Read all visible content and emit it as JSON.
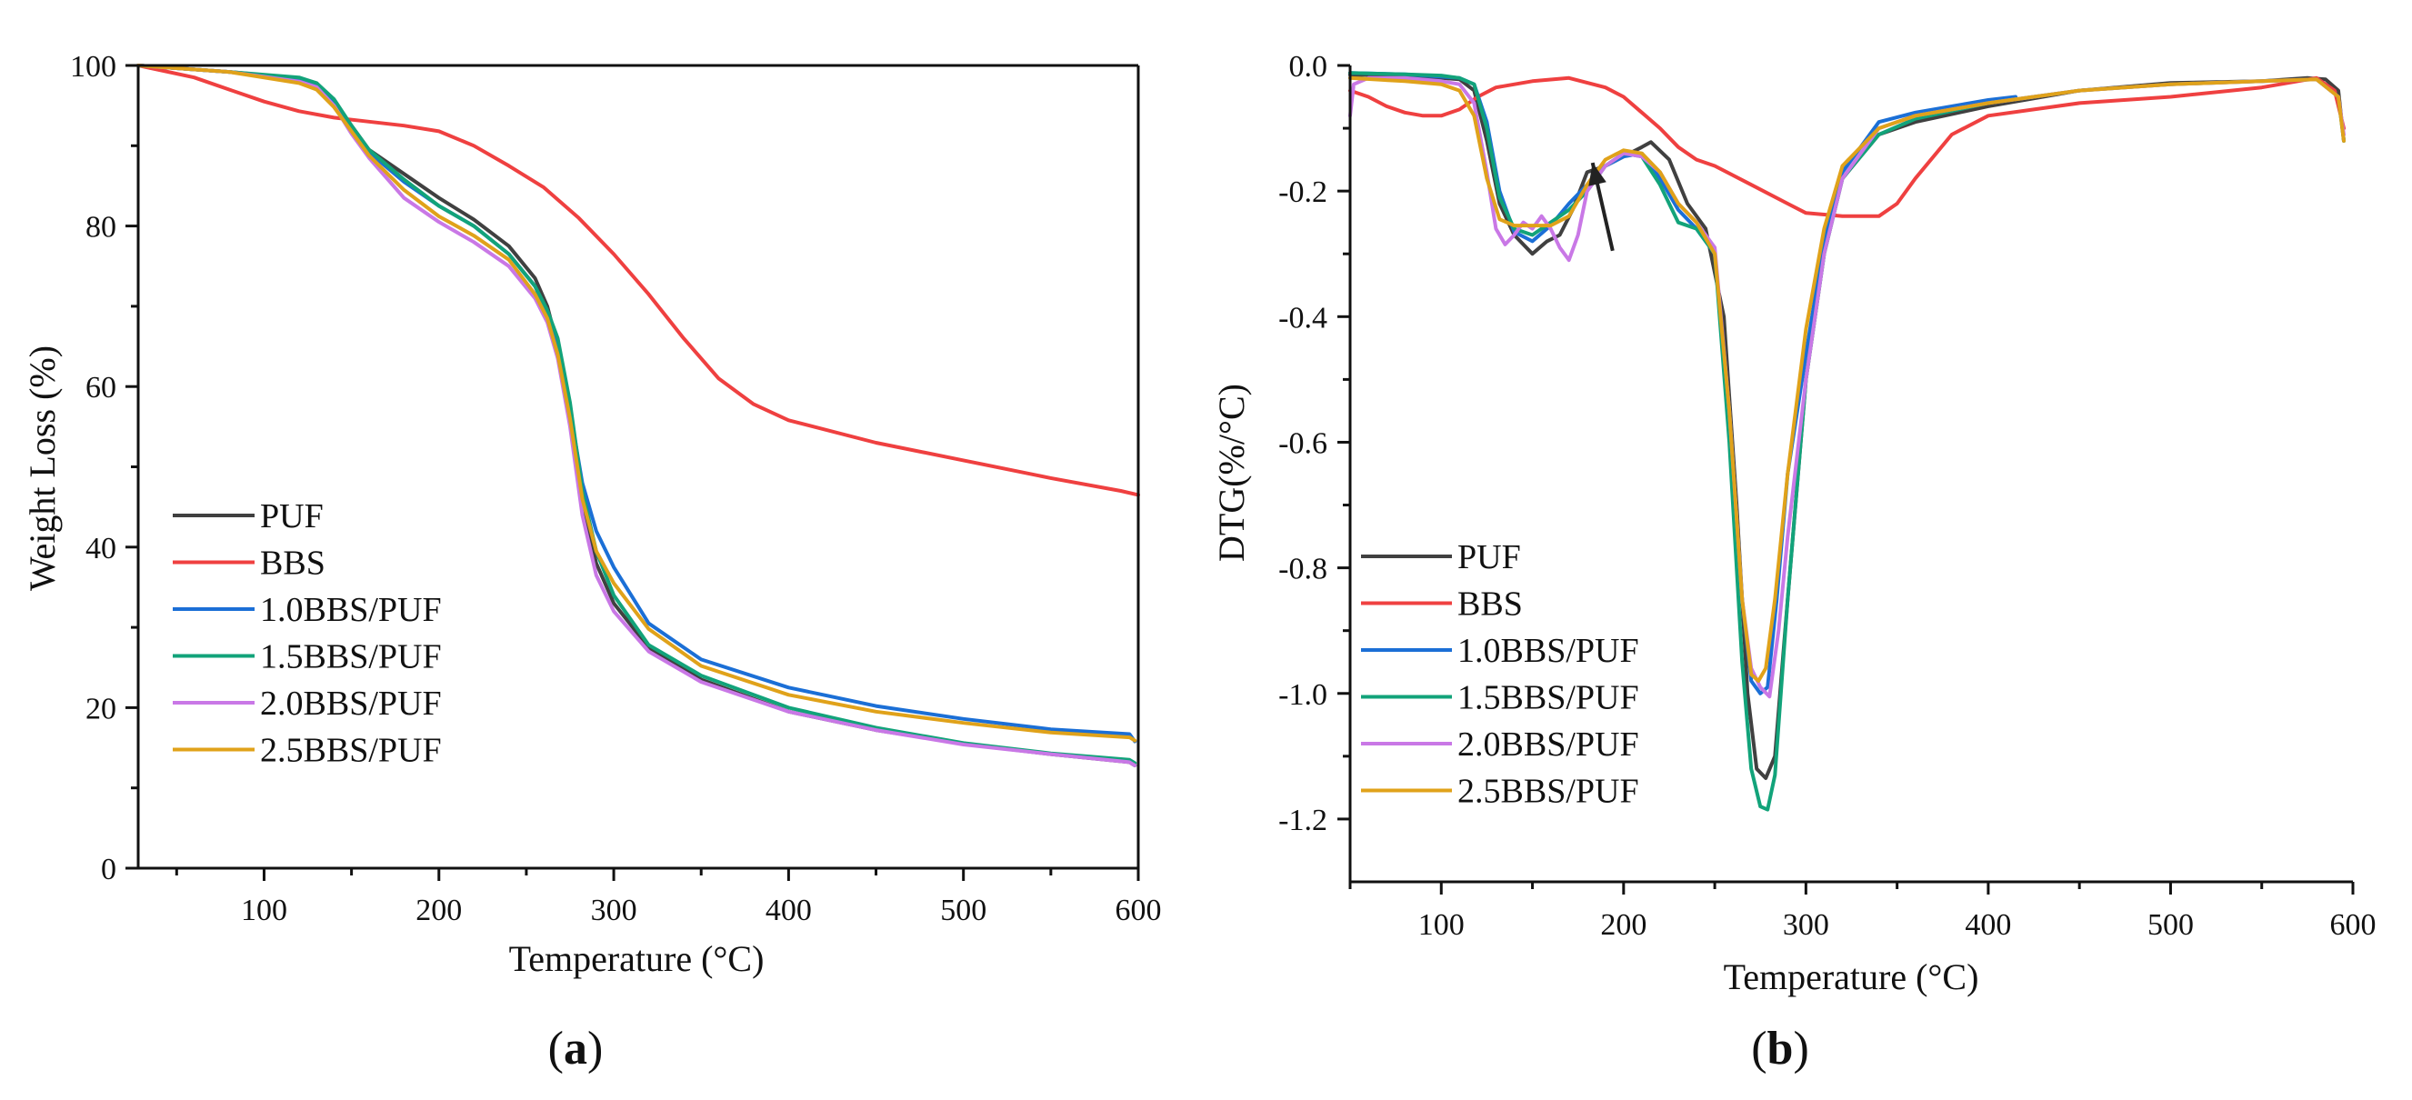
{
  "colors": {
    "PUF": "#404040",
    "BBS": "#ef4040",
    "1.0BBS/PUF": "#1b6fd6",
    "1.5BBS/PUF": "#12a37a",
    "2.0BBS/PUF": "#c978e6",
    "2.5BBS/PUF": "#e0a21a",
    "arrow": "#222222"
  },
  "chart_data": [
    {
      "id": "a",
      "panel_label": "a",
      "type": "line",
      "title": "",
      "xlabel": "Temperature (°C)",
      "ylabel": "Weight Loss (%)",
      "xlim": [
        28,
        600
      ],
      "ylim": [
        0,
        100
      ],
      "xticks": [
        100,
        200,
        300,
        400,
        500,
        600
      ],
      "yticks": [
        0,
        20,
        40,
        60,
        80,
        100
      ],
      "legend_position": "left",
      "series": [
        {
          "name": "PUF",
          "x": [
            28,
            80,
            120,
            130,
            140,
            150,
            160,
            180,
            200,
            220,
            240,
            255,
            262,
            268,
            275,
            282,
            290,
            300,
            320,
            350,
            400,
            450,
            500,
            550,
            595,
            598
          ],
          "y": [
            100,
            99.2,
            98.4,
            97.8,
            95.5,
            92.5,
            89.5,
            86.5,
            83.5,
            80.8,
            77.5,
            73.5,
            70,
            65,
            56,
            46,
            38,
            33,
            27.5,
            23.5,
            19.5,
            17.2,
            15.5,
            14.2,
            13.2,
            12.8
          ]
        },
        {
          "name": "BBS",
          "x": [
            28,
            60,
            80,
            100,
            120,
            140,
            160,
            180,
            200,
            220,
            240,
            260,
            280,
            300,
            320,
            340,
            360,
            380,
            400,
            450,
            500,
            550,
            590,
            600
          ],
          "y": [
            100,
            98.5,
            97,
            95.5,
            94.3,
            93.5,
            93,
            92.5,
            91.8,
            90,
            87.5,
            84.8,
            81,
            76.5,
            71.5,
            66,
            61,
            57.8,
            55.8,
            53,
            50.8,
            48.6,
            47,
            46.5
          ]
        },
        {
          "name": "1.0BBS/PUF",
          "x": [
            28,
            80,
            120,
            130,
            140,
            150,
            160,
            180,
            200,
            220,
            240,
            255,
            262,
            268,
            275,
            282,
            290,
            300,
            320,
            350,
            400,
            450,
            500,
            550,
            595,
            598
          ],
          "y": [
            100,
            99.2,
            98.2,
            97.5,
            95.5,
            92.2,
            89.2,
            85.5,
            82.5,
            80,
            76.5,
            72.5,
            69,
            65,
            57,
            48,
            42,
            37.5,
            30.5,
            26,
            22.5,
            20.2,
            18.6,
            17.3,
            16.7,
            15.8
          ]
        },
        {
          "name": "1.5BBS/PUF",
          "x": [
            28,
            80,
            120,
            130,
            140,
            150,
            160,
            180,
            200,
            220,
            240,
            255,
            262,
            268,
            275,
            282,
            290,
            300,
            320,
            350,
            400,
            450,
            500,
            550,
            595,
            598
          ],
          "y": [
            100,
            99.2,
            98.5,
            97.8,
            95.8,
            92.5,
            89.5,
            85.8,
            82.5,
            80,
            76.5,
            72.5,
            69.5,
            66,
            58,
            47,
            39.5,
            34,
            27.8,
            24,
            20,
            17.5,
            15.6,
            14.3,
            13.5,
            13.1
          ]
        },
        {
          "name": "2.0BBS/PUF",
          "x": [
            28,
            80,
            120,
            130,
            140,
            150,
            160,
            180,
            200,
            220,
            240,
            255,
            262,
            268,
            275,
            282,
            290,
            300,
            320,
            350,
            400,
            450,
            500,
            550,
            595,
            598
          ],
          "y": [
            100,
            99.2,
            98,
            97.3,
            95,
            91.5,
            88.5,
            83.5,
            80.5,
            78,
            75,
            71,
            68,
            63.5,
            55,
            44,
            36.5,
            32,
            27,
            23.2,
            19.5,
            17.2,
            15.4,
            14.2,
            13.2,
            12.8
          ]
        },
        {
          "name": "2.5BBS/PUF",
          "x": [
            28,
            80,
            120,
            130,
            140,
            150,
            160,
            180,
            200,
            220,
            240,
            255,
            262,
            268,
            275,
            282,
            290,
            300,
            320,
            350,
            400,
            450,
            500,
            550,
            595,
            598
          ],
          "y": [
            100,
            99.2,
            97.8,
            97,
            94.8,
            91.8,
            88.8,
            84.5,
            81.2,
            78.8,
            75.8,
            71.5,
            68.5,
            64,
            56,
            46,
            39.5,
            35.5,
            29.8,
            25.2,
            21.6,
            19.5,
            18.1,
            16.9,
            16.3,
            15.9
          ]
        }
      ]
    },
    {
      "id": "b",
      "panel_label": "b",
      "type": "line",
      "title": "",
      "xlabel": "Temperature (°C)",
      "ylabel": "DTG(%/°C)",
      "xlim": [
        50,
        600
      ],
      "ylim": [
        -1.3,
        0.0
      ],
      "xticks": [
        100,
        200,
        300,
        400,
        500,
        600
      ],
      "yticks": [
        0.0,
        -0.2,
        -0.4,
        -0.6,
        -0.8,
        -1.0,
        -1.2
      ],
      "ytick_labels": [
        "0.0",
        "-0.2",
        "-0.4",
        "-0.6",
        "-0.8",
        "-1.0",
        "-1.2"
      ],
      "legend_position": "left",
      "annotation": {
        "type": "arrow",
        "from": [
          194,
          -0.295
        ],
        "to": [
          183,
          -0.155
        ]
      },
      "series": [
        {
          "name": "PUF",
          "x": [
            50,
            80,
            100,
            110,
            118,
            125,
            132,
            140,
            150,
            158,
            165,
            172,
            180,
            190,
            200,
            210,
            215,
            225,
            235,
            245,
            255,
            262,
            268,
            273,
            278,
            283,
            290,
            300,
            310,
            320,
            340,
            360,
            400,
            450,
            500,
            550,
            575,
            585,
            592,
            595
          ],
          "y": [
            -0.015,
            -0.015,
            -0.02,
            -0.022,
            -0.04,
            -0.12,
            -0.22,
            -0.27,
            -0.3,
            -0.28,
            -0.27,
            -0.23,
            -0.17,
            -0.16,
            -0.145,
            -0.13,
            -0.122,
            -0.15,
            -0.22,
            -0.26,
            -0.4,
            -0.7,
            -1.0,
            -1.12,
            -1.135,
            -1.1,
            -0.85,
            -0.5,
            -0.3,
            -0.18,
            -0.11,
            -0.09,
            -0.065,
            -0.04,
            -0.028,
            -0.025,
            -0.02,
            -0.022,
            -0.04,
            -0.12
          ]
        },
        {
          "name": "BBS",
          "x": [
            50,
            60,
            70,
            80,
            90,
            100,
            110,
            120,
            130,
            150,
            170,
            190,
            200,
            210,
            220,
            230,
            240,
            250,
            270,
            290,
            300,
            320,
            340,
            350,
            360,
            380,
            400,
            450,
            500,
            550,
            580,
            590,
            595
          ],
          "y": [
            -0.04,
            -0.05,
            -0.065,
            -0.075,
            -0.08,
            -0.08,
            -0.07,
            -0.05,
            -0.035,
            -0.025,
            -0.02,
            -0.035,
            -0.05,
            -0.075,
            -0.1,
            -0.13,
            -0.15,
            -0.16,
            -0.19,
            -0.22,
            -0.235,
            -0.24,
            -0.24,
            -0.22,
            -0.18,
            -0.11,
            -0.08,
            -0.06,
            -0.05,
            -0.035,
            -0.02,
            -0.04,
            -0.1
          ]
        },
        {
          "name": "1.0BBS/PUF",
          "x": [
            50,
            80,
            100,
            110,
            118,
            125,
            132,
            140,
            150,
            160,
            170,
            180,
            190,
            200,
            210,
            220,
            230,
            240,
            250,
            258,
            265,
            270,
            275,
            279,
            284,
            290,
            300,
            310,
            320,
            340,
            360,
            400,
            415
          ],
          "y": [
            -0.012,
            -0.014,
            -0.018,
            -0.02,
            -0.03,
            -0.09,
            -0.2,
            -0.265,
            -0.28,
            -0.255,
            -0.22,
            -0.19,
            -0.16,
            -0.145,
            -0.14,
            -0.18,
            -0.23,
            -0.26,
            -0.3,
            -0.55,
            -0.85,
            -0.98,
            -1.0,
            -0.99,
            -0.85,
            -0.65,
            -0.46,
            -0.28,
            -0.17,
            -0.09,
            -0.075,
            -0.055,
            -0.05
          ]
        },
        {
          "name": "1.5BBS/PUF",
          "x": [
            50,
            80,
            100,
            110,
            118,
            125,
            132,
            140,
            150,
            160,
            170,
            180,
            190,
            200,
            210,
            220,
            230,
            240,
            250,
            258,
            265,
            270,
            275,
            279,
            283,
            290,
            300,
            310,
            320,
            340,
            360,
            400,
            450,
            500,
            550,
            580,
            592,
            595
          ],
          "y": [
            -0.012,
            -0.014,
            -0.016,
            -0.02,
            -0.03,
            -0.1,
            -0.21,
            -0.26,
            -0.27,
            -0.25,
            -0.23,
            -0.2,
            -0.16,
            -0.14,
            -0.145,
            -0.19,
            -0.25,
            -0.26,
            -0.3,
            -0.6,
            -0.95,
            -1.12,
            -1.18,
            -1.185,
            -1.13,
            -0.85,
            -0.5,
            -0.3,
            -0.18,
            -0.11,
            -0.085,
            -0.06,
            -0.04,
            -0.03,
            -0.025,
            -0.022,
            -0.05,
            -0.12
          ]
        },
        {
          "name": "2.0BBS/PUF",
          "x": [
            50,
            52,
            60,
            80,
            100,
            110,
            118,
            125,
            130,
            135,
            140,
            145,
            150,
            155,
            160,
            165,
            170,
            175,
            180,
            190,
            200,
            210,
            220,
            230,
            240,
            250,
            258,
            265,
            270,
            275,
            280,
            285,
            290,
            300,
            310,
            320,
            340,
            360,
            400,
            450,
            500,
            550,
            580,
            592,
            595
          ],
          "y": [
            -0.08,
            -0.03,
            -0.02,
            -0.02,
            -0.025,
            -0.03,
            -0.06,
            -0.17,
            -0.26,
            -0.285,
            -0.27,
            -0.25,
            -0.26,
            -0.24,
            -0.26,
            -0.29,
            -0.31,
            -0.27,
            -0.2,
            -0.16,
            -0.14,
            -0.145,
            -0.17,
            -0.22,
            -0.25,
            -0.29,
            -0.55,
            -0.85,
            -0.96,
            -0.99,
            -1.005,
            -0.9,
            -0.75,
            -0.5,
            -0.3,
            -0.18,
            -0.1,
            -0.08,
            -0.06,
            -0.04,
            -0.03,
            -0.025,
            -0.022,
            -0.05,
            -0.11
          ]
        },
        {
          "name": "2.5BBS/PUF",
          "x": [
            50,
            80,
            100,
            110,
            118,
            125,
            132,
            140,
            150,
            160,
            170,
            180,
            190,
            200,
            210,
            220,
            230,
            240,
            250,
            258,
            265,
            270,
            274,
            278,
            283,
            290,
            300,
            310,
            320,
            340,
            360,
            400,
            450,
            500,
            550,
            580,
            592,
            595
          ],
          "y": [
            -0.02,
            -0.025,
            -0.03,
            -0.04,
            -0.08,
            -0.18,
            -0.245,
            -0.255,
            -0.255,
            -0.255,
            -0.24,
            -0.19,
            -0.15,
            -0.135,
            -0.14,
            -0.17,
            -0.22,
            -0.25,
            -0.3,
            -0.55,
            -0.85,
            -0.97,
            -0.98,
            -0.96,
            -0.85,
            -0.65,
            -0.42,
            -0.26,
            -0.16,
            -0.1,
            -0.08,
            -0.06,
            -0.04,
            -0.03,
            -0.025,
            -0.022,
            -0.05,
            -0.12
          ]
        }
      ]
    }
  ]
}
